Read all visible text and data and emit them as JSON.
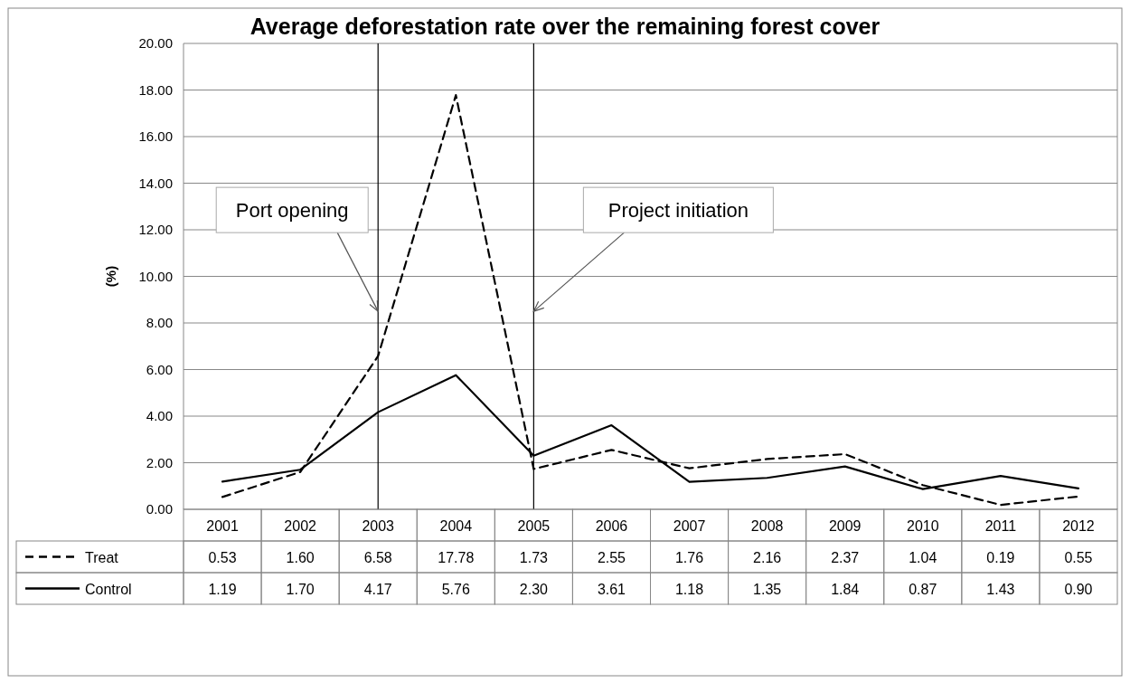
{
  "chart_data": {
    "type": "line",
    "title": "Average deforestation rate over the remaining forest cover",
    "ylabel": "(%)",
    "categories": [
      "2001",
      "2002",
      "2003",
      "2004",
      "2005",
      "2006",
      "2007",
      "2008",
      "2009",
      "2010",
      "2011",
      "2012"
    ],
    "series": [
      {
        "name": "Treat",
        "color": "#000000",
        "line_style": "dashed",
        "values": [
          0.53,
          1.6,
          6.58,
          17.78,
          1.73,
          2.55,
          1.76,
          2.16,
          2.37,
          1.04,
          0.19,
          0.55
        ],
        "value_labels": [
          "0.53",
          "1.60",
          "6.58",
          "17.78",
          "1.73",
          "2.55",
          "1.76",
          "2.16",
          "2.37",
          "1.04",
          "0.19",
          "0.55"
        ]
      },
      {
        "name": "Control",
        "color": "#000000",
        "line_style": "solid",
        "values": [
          1.19,
          1.7,
          4.17,
          5.76,
          2.3,
          3.61,
          1.18,
          1.35,
          1.84,
          0.87,
          1.43,
          0.9
        ],
        "value_labels": [
          "1.19",
          "1.70",
          "4.17",
          "5.76",
          "2.30",
          "3.61",
          "1.18",
          "1.35",
          "1.84",
          "0.87",
          "1.43",
          "0.90"
        ]
      }
    ],
    "ylim": [
      0,
      20
    ],
    "yticks": [
      {
        "value": 0,
        "label": "0.00"
      },
      {
        "value": 2,
        "label": "2.00"
      },
      {
        "value": 4,
        "label": "4.00"
      },
      {
        "value": 6,
        "label": "6.00"
      },
      {
        "value": 8,
        "label": "8.00"
      },
      {
        "value": 10,
        "label": "10.00"
      },
      {
        "value": 12,
        "label": "12.00"
      },
      {
        "value": 14,
        "label": "14.00"
      },
      {
        "value": 16,
        "label": "16.00"
      },
      {
        "value": 18,
        "label": "18.00"
      },
      {
        "value": 20,
        "label": "20.00"
      }
    ],
    "grid": "y",
    "legend": "bottom",
    "marker": "none",
    "ref_lines": [
      {
        "axis": "x",
        "value": "2003",
        "color": "#000000"
      },
      {
        "axis": "x",
        "value": "2005",
        "color": "#000000"
      }
    ],
    "annotations": [
      {
        "text": "Port opening",
        "x": "2003",
        "y": 8.5
      },
      {
        "text": "Project initiation",
        "x": "2005",
        "y": 8.5
      }
    ]
  }
}
